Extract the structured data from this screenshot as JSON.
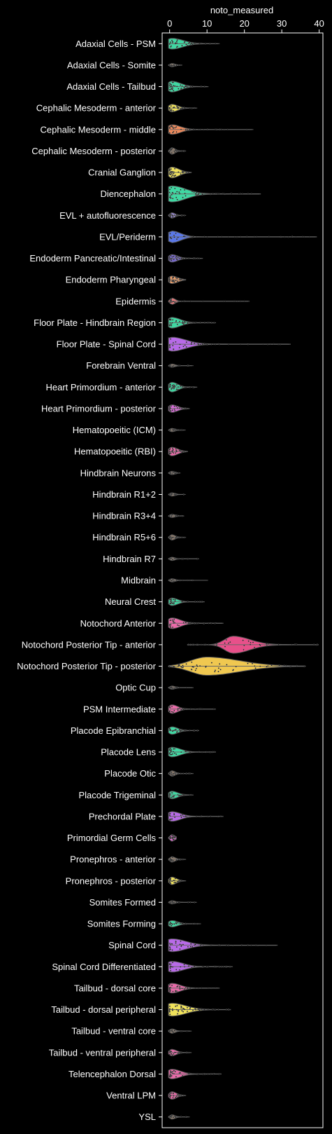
{
  "chart_data": {
    "type": "violin",
    "title": "",
    "xlabel": "noto_measured",
    "ylabel": "",
    "xlim": [
      -2,
      41
    ],
    "x_ticks": [
      0,
      10,
      20,
      30,
      40
    ],
    "x_axis_position": "top",
    "grid": false,
    "background": "#000000",
    "categories": [
      {
        "name": "Adaxial Cells - PSM",
        "color": "#3fd8a2",
        "max": 13,
        "spread": 4,
        "width": 0.5
      },
      {
        "name": "Adaxial Cells - Somite",
        "color": "#8c7a6a",
        "max": 3,
        "spread": 1,
        "width": 0.15
      },
      {
        "name": "Adaxial Cells - Tailbud",
        "color": "#3fd8a2",
        "max": 10,
        "spread": 3,
        "width": 0.5
      },
      {
        "name": "Cephalic Mesoderm - anterior",
        "color": "#f0e25a",
        "max": 7,
        "spread": 2,
        "width": 0.35
      },
      {
        "name": "Cephalic Mesoderm - middle",
        "color": "#f08a5a",
        "max": 22,
        "spread": 3,
        "width": 0.45
      },
      {
        "name": "Cephalic Mesoderm - posterior",
        "color": "#8c7a6a",
        "max": 4,
        "spread": 1,
        "width": 0.3
      },
      {
        "name": "Cranial Ganglion",
        "color": "#f0e25a",
        "max": 5.5,
        "spread": 2.5,
        "width": 0.5
      },
      {
        "name": "Diencephalon",
        "color": "#3fd8a2",
        "max": 24,
        "spread": 5,
        "width": 0.75
      },
      {
        "name": "EVL + autofluorescence",
        "color": "#9a8ad8",
        "max": 4,
        "spread": 1,
        "width": 0.25
      },
      {
        "name": "EVL/Periderm",
        "color": "#5a78e8",
        "max": 39,
        "spread": 3,
        "width": 0.55
      },
      {
        "name": "Endoderm Pancreatic/Intestinal",
        "color": "#7a6ad8",
        "max": 8.5,
        "spread": 2,
        "width": 0.35
      },
      {
        "name": "Endoderm Pharyngeal",
        "color": "#f0a06a",
        "max": 4,
        "spread": 2,
        "width": 0.35
      },
      {
        "name": "Epidermis",
        "color": "#e87a7a",
        "max": 21,
        "spread": 1,
        "width": 0.3
      },
      {
        "name": "Floor Plate - Hindbrain Region",
        "color": "#3fd8a2",
        "max": 12,
        "spread": 3,
        "width": 0.5
      },
      {
        "name": "Floor Plate - Spinal Cord",
        "color": "#b86ae8",
        "max": 32,
        "spread": 5,
        "width": 0.65
      },
      {
        "name": "Forebrain Ventral",
        "color": "#8c7a6a",
        "max": 6,
        "spread": 1,
        "width": 0.15
      },
      {
        "name": "Heart Primordium - anterior",
        "color": "#3fd8a2",
        "max": 7,
        "spread": 2,
        "width": 0.45
      },
      {
        "name": "Heart Primordium - posterior",
        "color": "#d86ad8",
        "max": 5,
        "spread": 2,
        "width": 0.35
      },
      {
        "name": "Hematopoeitic (ICM)",
        "color": "#8c7a6a",
        "max": 4,
        "spread": 1,
        "width": 0.15
      },
      {
        "name": "Hematopoeitic (RBI)",
        "color": "#e86aa8",
        "max": 4.5,
        "spread": 2,
        "width": 0.4
      },
      {
        "name": "Hindbrain Neurons",
        "color": "#8c7a6a",
        "max": 2.5,
        "spread": 1,
        "width": 0.15
      },
      {
        "name": "Hindbrain R1+2",
        "color": "#8c7a6a",
        "max": 4,
        "spread": 1,
        "width": 0.15
      },
      {
        "name": "Hindbrain R3+4",
        "color": "#8c7a6a",
        "max": 3.5,
        "spread": 1,
        "width": 0.15
      },
      {
        "name": "Hindbrain R5+6",
        "color": "#8c7a6a",
        "max": 4,
        "spread": 1,
        "width": 0.25
      },
      {
        "name": "Hindbrain R7",
        "color": "#8c7a6a",
        "max": 7.5,
        "spread": 1,
        "width": 0.15
      },
      {
        "name": "Midbrain",
        "color": "#8c7a6a",
        "max": 10,
        "spread": 1,
        "width": 0.15
      },
      {
        "name": "Neural Crest",
        "color": "#3fd8a2",
        "max": 9,
        "spread": 2,
        "width": 0.35
      },
      {
        "name": "Notochord Anterior",
        "color": "#e86aa8",
        "max": 14,
        "spread": 3,
        "width": 0.5
      },
      {
        "name": "Notochord Posterior Tip - anterior",
        "color": "#e8508a",
        "min": 5,
        "max": 39.5,
        "center": 17,
        "spread": 6,
        "width": 0.8
      },
      {
        "name": "Notochord Posterior Tip - posterior",
        "color": "#f0c850",
        "min": 0,
        "max": 36,
        "center": 10,
        "spread": 12,
        "width": 0.85
      },
      {
        "name": "Optic Cup",
        "color": "#8c7a6a",
        "max": 6,
        "spread": 1,
        "width": 0.15
      },
      {
        "name": "PSM Intermediate",
        "color": "#e86aa8",
        "max": 12,
        "spread": 2,
        "width": 0.4
      },
      {
        "name": "Placode Epibranchial",
        "color": "#3fd8a2",
        "max": 7.5,
        "spread": 2,
        "width": 0.35
      },
      {
        "name": "Placode Lens",
        "color": "#3fd8a2",
        "max": 12,
        "spread": 3,
        "width": 0.45
      },
      {
        "name": "Placode Otic",
        "color": "#8c7a6a",
        "max": 6,
        "spread": 1,
        "width": 0.25
      },
      {
        "name": "Placode Trigeminal",
        "color": "#3fd8a2",
        "max": 6,
        "spread": 2,
        "width": 0.35
      },
      {
        "name": "Prechordal Plate",
        "color": "#b86ae8",
        "max": 14,
        "spread": 3,
        "width": 0.45
      },
      {
        "name": "Primordial Germ Cells",
        "color": "#e86ad8",
        "max": 1.5,
        "spread": 1,
        "width": 0.3
      },
      {
        "name": "Pronephros - anterior",
        "color": "#8c7a6a",
        "max": 4,
        "spread": 1,
        "width": 0.25
      },
      {
        "name": "Pronephros - posterior",
        "color": "#f0e25a",
        "max": 4,
        "spread": 1.5,
        "width": 0.35
      },
      {
        "name": "Somites Formed",
        "color": "#8c7a6a",
        "max": 7,
        "spread": 1,
        "width": 0.15
      },
      {
        "name": "Somites Forming",
        "color": "#3fd8a2",
        "max": 8,
        "spread": 2,
        "width": 0.3
      },
      {
        "name": "Spinal Cord",
        "color": "#b86ae8",
        "max": 28.5,
        "spread": 5,
        "width": 0.6
      },
      {
        "name": "Spinal Cord Differentiated",
        "color": "#b86ae8",
        "max": 16.5,
        "spread": 4,
        "width": 0.5
      },
      {
        "name": "Tailbud - dorsal core",
        "color": "#e86aa8",
        "max": 13,
        "spread": 3,
        "width": 0.45
      },
      {
        "name": "Tailbud - dorsal peripheral",
        "color": "#f0e25a",
        "max": 16,
        "spread": 5,
        "width": 0.6
      },
      {
        "name": "Tailbud - ventral core",
        "color": "#8c7a6a",
        "max": 5.5,
        "spread": 1,
        "width": 0.2
      },
      {
        "name": "Tailbud - ventral peripheral",
        "color": "#e86aa8",
        "max": 5.5,
        "spread": 1.5,
        "width": 0.3
      },
      {
        "name": "Telencephalon Dorsal",
        "color": "#e86aa8",
        "max": 13.5,
        "spread": 3,
        "width": 0.45
      },
      {
        "name": "Ventral LPM",
        "color": "#e86aa8",
        "max": 4,
        "spread": 1.5,
        "width": 0.35
      },
      {
        "name": "YSL",
        "color": "#8c7a6a",
        "max": 5,
        "spread": 1,
        "width": 0.2
      }
    ]
  }
}
